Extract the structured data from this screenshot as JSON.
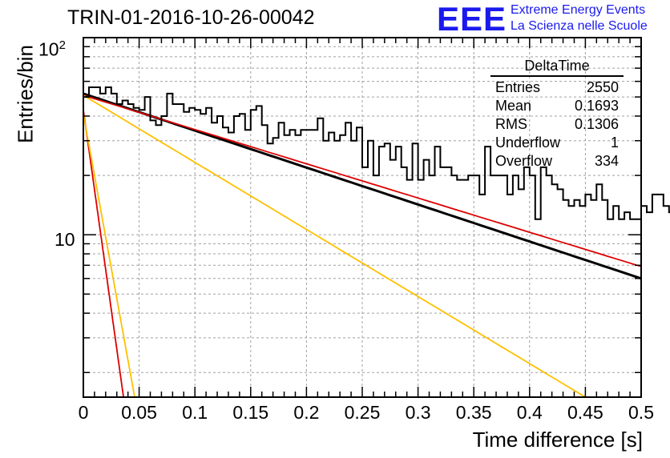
{
  "header": {
    "title": "TRIN-01-2016-10-26-00042",
    "brand_logo": "EEE",
    "brand_line1": "Extreme Energy Events",
    "brand_line2": "La Scienza nelle Scuole"
  },
  "stats": {
    "title": "DeltaTime",
    "rows": [
      {
        "label": "Entries",
        "value": "2550"
      },
      {
        "label": "Mean",
        "value": "0.1693"
      },
      {
        "label": "RMS",
        "value": "0.1306"
      },
      {
        "label": "Underflow",
        "value": "1"
      },
      {
        "label": "Overflow",
        "value": "334"
      }
    ]
  },
  "colors": {
    "histogram": "#000000",
    "fit_total": "#000000",
    "fit_slow": "#dd0000",
    "fit_fast": "#dd0000",
    "fit_slow_alt": "#ffc000",
    "fit_fast_alt": "#ffc000",
    "grid": "#a0a0a0"
  },
  "chart_data": {
    "type": "line",
    "title": "TRIN-01-2016-10-26-00042",
    "xlabel": "Time difference [s]",
    "ylabel": "Entries/bin",
    "xlim": [
      0,
      0.5
    ],
    "ylim": [
      1.5,
      100
    ],
    "log_y": true,
    "grid": true,
    "x_tick_labels": [
      "0",
      "0.05",
      "0.1",
      "0.15",
      "0.2",
      "0.25",
      "0.3",
      "0.35",
      "0.4",
      "0.45",
      "0.5"
    ],
    "x_tick_values": [
      0,
      0.05,
      0.1,
      0.15,
      0.2,
      0.25,
      0.3,
      0.35,
      0.4,
      0.45,
      0.5
    ],
    "y_tick_labels": [
      {
        "base": "10",
        "exp": ""
      },
      {
        "base": "10",
        "exp": "2"
      }
    ],
    "y_tick_values": [
      10,
      100
    ],
    "histogram": {
      "bin_width": 0.005,
      "values": [
        50,
        56,
        56,
        52,
        56,
        52,
        46,
        48,
        46,
        44,
        43,
        50,
        38,
        36,
        40,
        52,
        46,
        46,
        42,
        44,
        43,
        41,
        44,
        37,
        40,
        35,
        33,
        40,
        41,
        34,
        43,
        45,
        36,
        29,
        31,
        37,
        32,
        34,
        32,
        34,
        34,
        34,
        39,
        30,
        33,
        30,
        32,
        37,
        30,
        35,
        22,
        30,
        20,
        28,
        29,
        24,
        28,
        22,
        19,
        29,
        19,
        24,
        20,
        28,
        22,
        22,
        20,
        19,
        19,
        20,
        20,
        16,
        28,
        20,
        20,
        20,
        16,
        20,
        17,
        22,
        20,
        12,
        22,
        20,
        18,
        17,
        15,
        14,
        15,
        14,
        16,
        15,
        18,
        15,
        12,
        14,
        12,
        13,
        12,
        12,
        14,
        13,
        16,
        16,
        14,
        13,
        13,
        12,
        12,
        14,
        14,
        12,
        12,
        13,
        11,
        11,
        15,
        11,
        10,
        13,
        9,
        13,
        13,
        11,
        12,
        11,
        8,
        11,
        13,
        11,
        11,
        11,
        13,
        10,
        11,
        8,
        9,
        8,
        13,
        7,
        8,
        11,
        11,
        8,
        5,
        7,
        4,
        7,
        6,
        6,
        6,
        12,
        12,
        9,
        9,
        10,
        11,
        12,
        11,
        11,
        11,
        13,
        9,
        8,
        5,
        11,
        11,
        9,
        7,
        9,
        11,
        10,
        7,
        7,
        7,
        3,
        5,
        5,
        5,
        10,
        6,
        6,
        6,
        6,
        6,
        7,
        7,
        7,
        6,
        6,
        3,
        5,
        5,
        6,
        7,
        6,
        3,
        5,
        4,
        5
      ]
    },
    "series": [
      {
        "name": "",
        "role": "total_fit",
        "color": "#000000",
        "function": "exp",
        "points": [
          [
            0,
            52
          ],
          [
            0.5,
            6.0
          ]
        ]
      },
      {
        "name": "",
        "role": "slow_fit",
        "color": "#dd0000",
        "function": "exp",
        "points": [
          [
            0,
            51
          ],
          [
            0.5,
            6.9
          ]
        ]
      },
      {
        "name": "",
        "role": "slow_fit_alt",
        "color": "#ffc000",
        "function": "exp",
        "points": [
          [
            0,
            51
          ],
          [
            0.45,
            1.5
          ]
        ]
      },
      {
        "name": "",
        "role": "fast_fit",
        "color": "#dd0000",
        "function": "exp",
        "points": [
          [
            0,
            43
          ],
          [
            0.036,
            1.5
          ]
        ]
      },
      {
        "name": "",
        "role": "fast_fit_alt",
        "color": "#ffc000",
        "function": "exp",
        "points": [
          [
            0,
            41
          ],
          [
            0.046,
            1.5
          ]
        ]
      }
    ]
  }
}
